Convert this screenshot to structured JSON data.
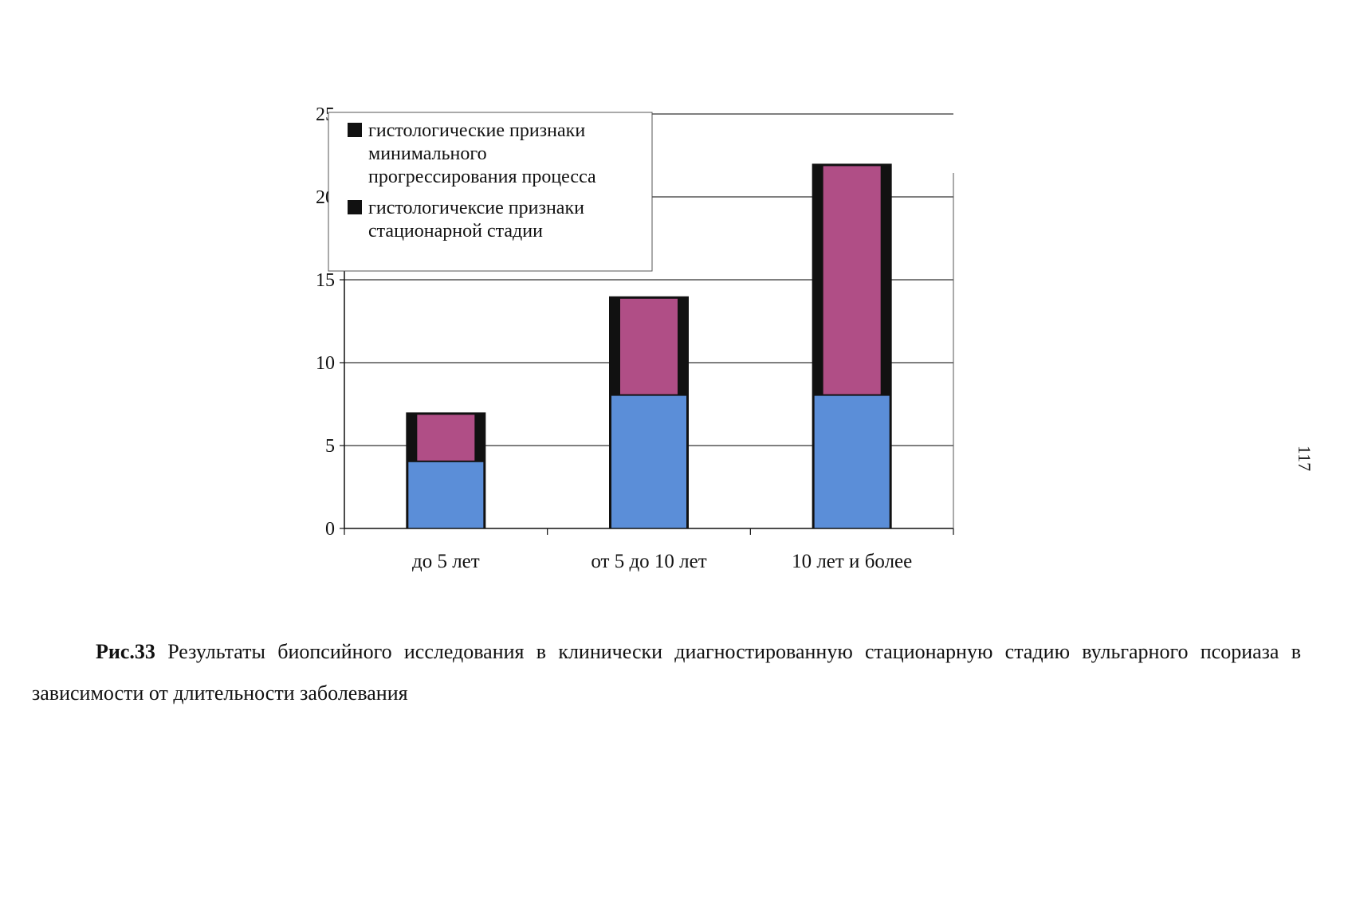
{
  "chart_data": {
    "type": "bar",
    "stacked": true,
    "categories": [
      "до 5 лет",
      "от 5 до 10 лет",
      "10 лет и более"
    ],
    "series": [
      {
        "name": "гистологичексие признаки стационарной стадии",
        "values": [
          4,
          8,
          8
        ],
        "color": "#5b8ed8"
      },
      {
        "name": "гистологические признаки минимального прогрессирования процесса",
        "values": [
          3,
          6,
          14
        ],
        "color": "#b04e86"
      }
    ],
    "bar_border_color": "#111111",
    "ylim": [
      0,
      25
    ],
    "yticks": [
      0,
      5,
      10,
      15,
      20,
      25
    ],
    "grid": true,
    "legend_position": "top-left",
    "legend": [
      {
        "lines": [
          "гистологические признаки",
          "минимального",
          "прогрессирования процесса"
        ],
        "swatch_color": "#111111"
      },
      {
        "lines": [
          "гистологичексие признаки",
          "стационарной стадии"
        ],
        "swatch_color": "#111111"
      }
    ]
  },
  "caption": {
    "figure_label": "Рис.33",
    "text": "Результаты биопсийного исследования в клинически диагностированную стационарную стадию вульгарного псориаза в зависимости от длительности заболевания"
  },
  "page_number": "117"
}
